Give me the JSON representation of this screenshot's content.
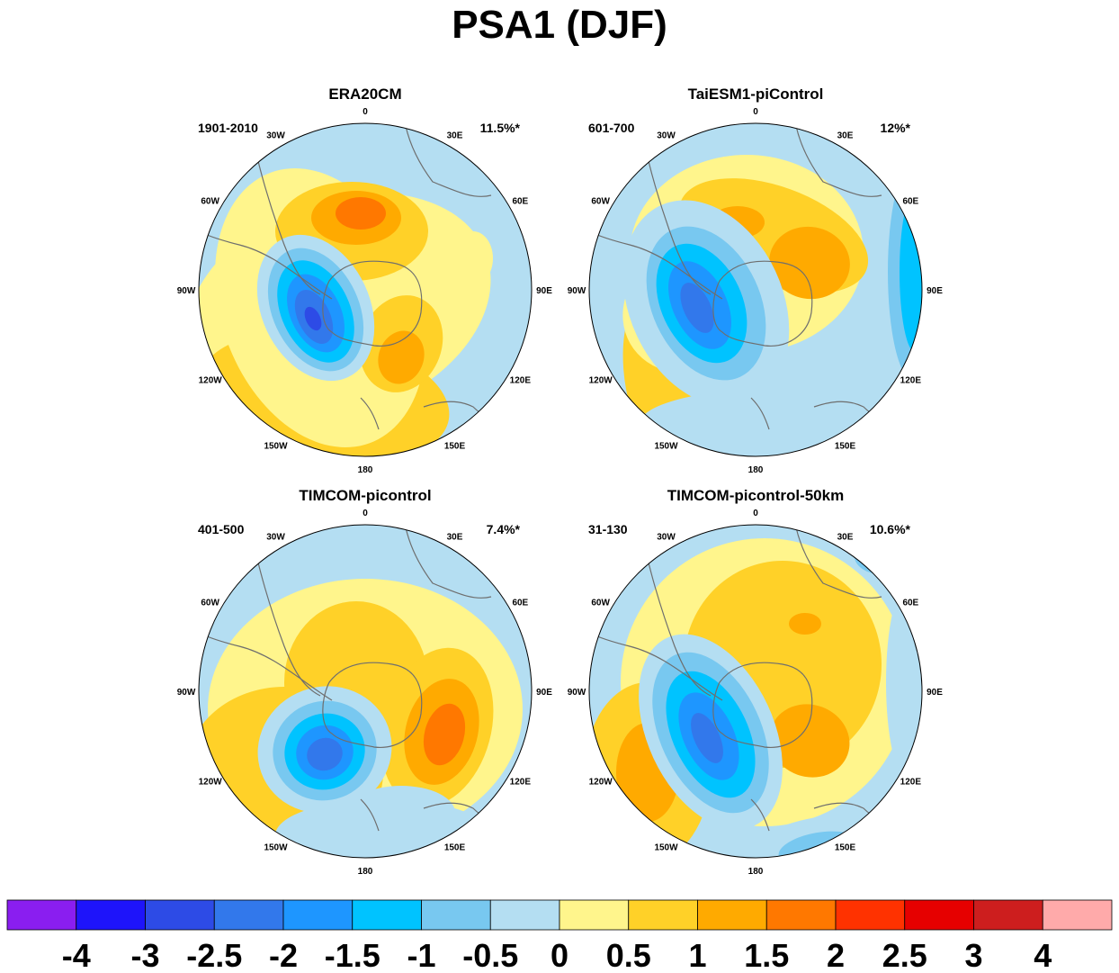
{
  "title": "PSA1 (DJF)",
  "colors": {
    "levels": [
      "#8a1ef0",
      "#1e14fa",
      "#2d4be6",
      "#3278eb",
      "#1e96ff",
      "#00c3ff",
      "#78c8f0",
      "#b4def2",
      "#fff58c",
      "#ffd128",
      "#ffaa00",
      "#ff7800",
      "#ff3200",
      "#e60000",
      "#cd1e1e",
      "#ffaaaa"
    ],
    "coast": "#6e6e6e"
  },
  "lon_labels": {
    "top": "0",
    "r1": "30E",
    "r2": "60E",
    "r3": "90E",
    "r4": "120E",
    "r5": "150E",
    "bottom": "180",
    "l5": "150W",
    "l4": "120W",
    "l3": "90W",
    "l2": "60W",
    "l1": "30W"
  },
  "panels": [
    {
      "title": "ERA20CM",
      "period": "1901-2010",
      "variance": "11.5%*"
    },
    {
      "title": "TaiESM1-piControl",
      "period": "601-700",
      "variance": "12%*"
    },
    {
      "title": "TIMCOM-picontrol",
      "period": "401-500",
      "variance": "7.4%*"
    },
    {
      "title": "TIMCOM-picontrol-50km",
      "period": "31-130",
      "variance": "10.6%*"
    }
  ],
  "chart_data": {
    "type": "heatmap",
    "title": "PSA1 (DJF)",
    "projection": "polar stereographic (south)",
    "colorbar_labels": [
      "-4",
      "-3",
      "-2.5",
      "-2",
      "-1.5",
      "-1",
      "-0.5",
      "0",
      "0.5",
      "1",
      "1.5",
      "2",
      "2.5",
      "3",
      "4"
    ],
    "panels": [
      {
        "title": "ERA20CM",
        "period": "1901-2010",
        "explained_variance": "11.5%*"
      },
      {
        "title": "TaiESM1-piControl",
        "period": "601-700",
        "explained_variance": "12%*"
      },
      {
        "title": "TIMCOM-picontrol",
        "period": "401-500",
        "explained_variance": "7.4%*"
      },
      {
        "title": "TIMCOM-picontrol-50km",
        "period": "31-130",
        "explained_variance": "10.6%*"
      }
    ]
  }
}
